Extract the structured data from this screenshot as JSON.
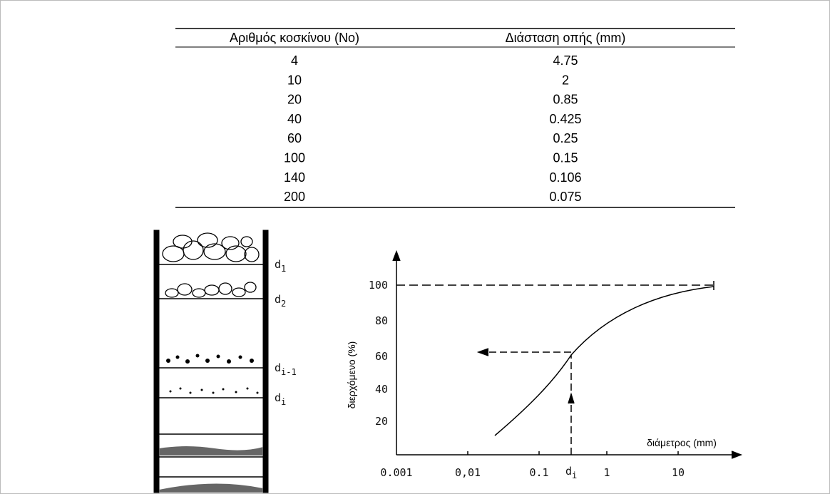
{
  "table": {
    "header": [
      "Αριθμός κοσκίνου (No)",
      "Διάσταση οπής (mm)"
    ],
    "rows": [
      [
        "4",
        "4.75"
      ],
      [
        "10",
        "2"
      ],
      [
        "20",
        "0.85"
      ],
      [
        "40",
        "0.425"
      ],
      [
        "60",
        "0.25"
      ],
      [
        "100",
        "0.15"
      ],
      [
        "140",
        "0.106"
      ],
      [
        "200",
        "0.075"
      ]
    ]
  },
  "figure": {
    "sieve_labels": [
      {
        "base": "d",
        "sub": "1"
      },
      {
        "base": "d",
        "sub": "2"
      },
      {
        "base": "d",
        "sub": "i-1"
      },
      {
        "base": "d",
        "sub": "i"
      }
    ],
    "y_label": "διερχόμενο (%)",
    "x_label": "διάμετρος (mm)",
    "y_ticks": [
      "100",
      "80",
      "60",
      "40",
      "20"
    ],
    "x_ticks": [
      "0.001",
      "0,01",
      "0.1",
      "1",
      "10"
    ],
    "di_label": {
      "base": "d",
      "sub": "i"
    }
  }
}
